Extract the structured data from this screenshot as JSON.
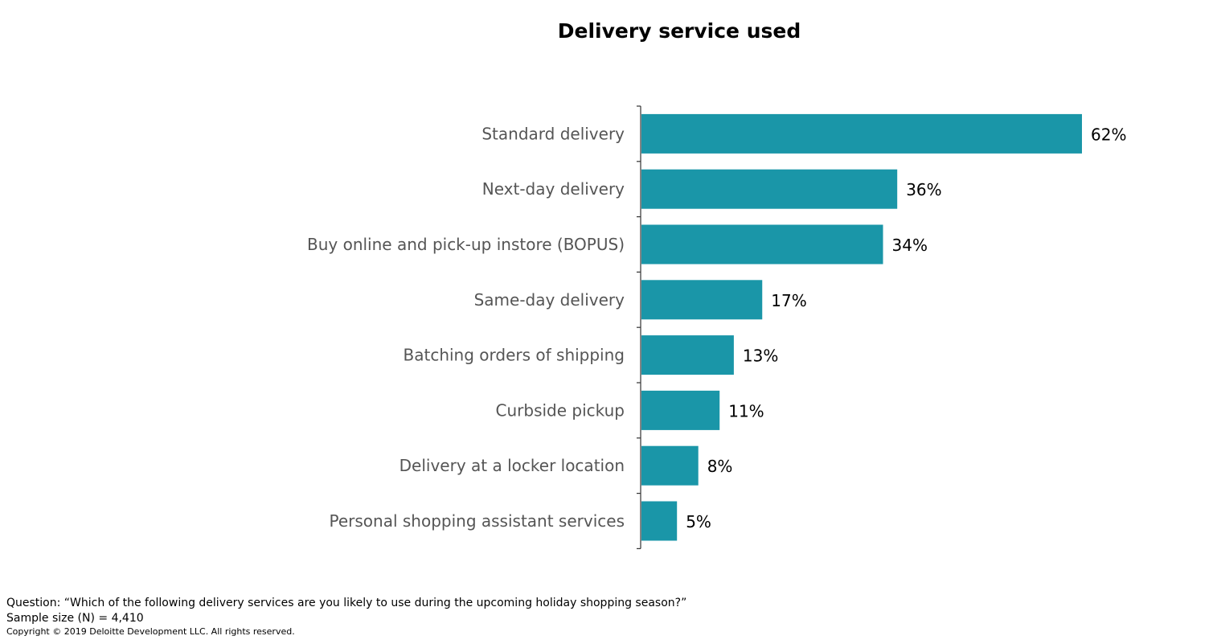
{
  "chart_data": {
    "type": "bar",
    "orientation": "horizontal",
    "title": "Delivery service used",
    "categories": [
      "Standard delivery",
      "Next-day delivery",
      "Buy online and pick-up instore (BOPUS)",
      "Same-day delivery",
      "Batching orders of shipping",
      "Curbside pickup",
      "Delivery at a locker location",
      "Personal shopping assistant services"
    ],
    "values": [
      62,
      36,
      34,
      17,
      13,
      11,
      8,
      5
    ],
    "data_labels": [
      "62%",
      "36%",
      "34%",
      "17%",
      "13%",
      "11%",
      "8%",
      "5%"
    ],
    "xlim": [
      0,
      70
    ],
    "grid": false,
    "legend": "none",
    "bar_color": "#1a96a8"
  },
  "footnotes": {
    "question": "Question: “Which of the following delivery services are you likely to use during the upcoming holiday shopping season?”",
    "sample_size": "Sample size (N) = 4,410",
    "copyright": "Copyright © 2019 Deloitte Development LLC. All rights reserved."
  }
}
